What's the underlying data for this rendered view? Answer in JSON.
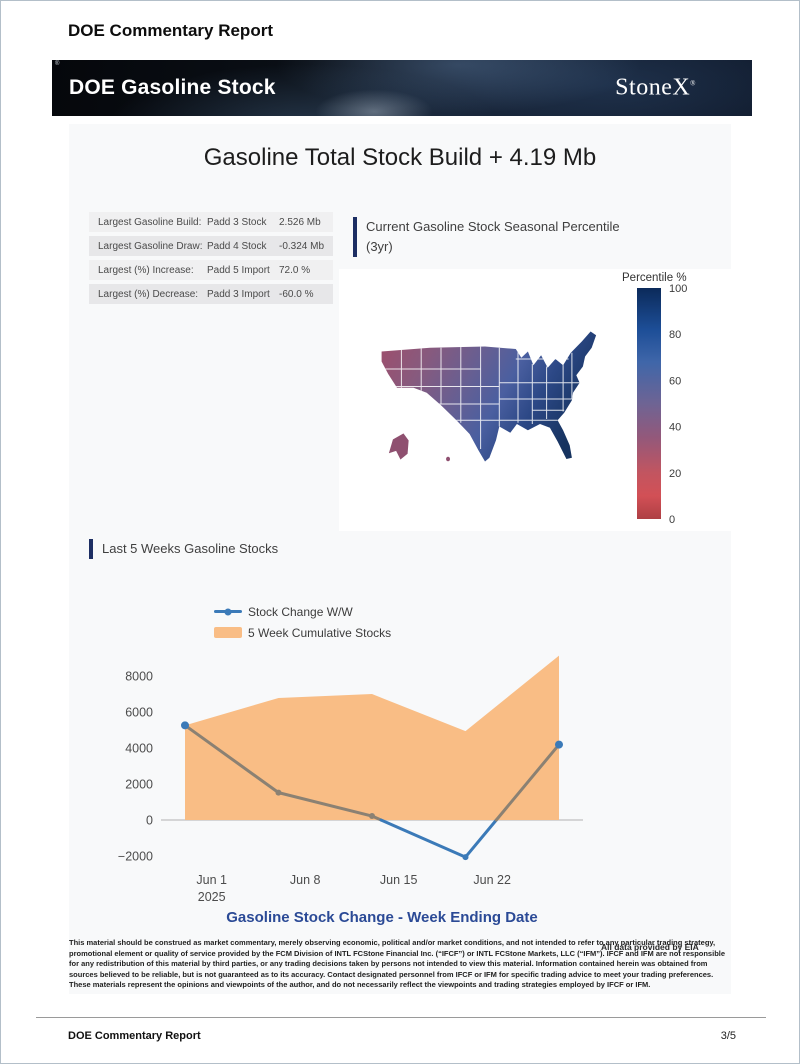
{
  "page": {
    "header_title": "DOE Commentary Report",
    "footer": {
      "left": "DOE Commentary Report",
      "right": "3/5"
    }
  },
  "banner": {
    "title": "DOE Gasoline Stock",
    "brand": "StoneX",
    "brand_reg": "®",
    "corner_mark": "®"
  },
  "report": {
    "title": "Gasoline Total Stock Build + 4.19 Mb"
  },
  "stats_table": {
    "rows": [
      {
        "label": "Largest Gasoline Build:",
        "series": "Padd 3 Stock",
        "value": "2.526 Mb"
      },
      {
        "label": "Largest Gasoline Draw:",
        "series": "Padd 4 Stock",
        "value": "-0.324 Mb"
      },
      {
        "label": "Largest (%) Increase:",
        "series": "Padd 5 Import",
        "value": "72.0 %"
      },
      {
        "label": "Largest (%) Decrease:",
        "series": "Padd 3 Import",
        "value": "-60.0 %"
      }
    ]
  },
  "map_section": {
    "heading_line1": "Current Gasoline Stock Seasonal Percentile",
    "heading_line2": "(3yr)",
    "colorbar": {
      "title": "Percentile %",
      "ticks": [
        100,
        80,
        60,
        40,
        20,
        0
      ],
      "gradient": [
        {
          "at": "0%",
          "color": "#0b2a5a"
        },
        {
          "at": "18%",
          "color": "#1d4e97"
        },
        {
          "at": "32%",
          "color": "#3f66a9"
        },
        {
          "at": "50%",
          "color": "#6e6494"
        },
        {
          "at": "65%",
          "color": "#94587a"
        },
        {
          "at": "80%",
          "color": "#c25560"
        },
        {
          "at": "90%",
          "color": "#d25056"
        },
        {
          "at": "100%",
          "color": "#ae3f44"
        }
      ]
    },
    "map_gradient": [
      {
        "at": "0%",
        "color": "#9d4f6d"
      },
      {
        "at": "22%",
        "color": "#875a7e"
      },
      {
        "at": "45%",
        "color": "#655f93"
      },
      {
        "at": "62%",
        "color": "#4a5fa0"
      },
      {
        "at": "78%",
        "color": "#2c4886"
      },
      {
        "at": "100%",
        "color": "#16335f"
      }
    ],
    "alaska_color": "#8f5070"
  },
  "chart_section": {
    "heading": "Last 5 Weeks Gasoline Stocks",
    "legend": [
      {
        "label": "Stock Change W/W",
        "color": "#3b7ab8",
        "type": "line"
      },
      {
        "label": "5 Week Cumulative Stocks",
        "color": "#f9bd85",
        "type": "area"
      }
    ],
    "xaxis_title": "Gasoline Stock Change - Week Ending Date"
  },
  "chart_data": {
    "type": "line+area",
    "title": "Last 5 Weeks Gasoline Stocks",
    "xlabel": "Gasoline Stock Change - Week Ending Date",
    "ylabel": "",
    "x_tick_labels": [
      [
        "Jun 1",
        "2025"
      ],
      [
        "Jun 8"
      ],
      [
        "Jun 15"
      ],
      [
        "Jun 22"
      ]
    ],
    "y_ticks": [
      8000,
      6000,
      4000,
      2000,
      0,
      -2000
    ],
    "ylim": [
      -2900,
      9650
    ],
    "grid": false,
    "legend_position": "top-center",
    "series": [
      {
        "name": "Stock Change W/W",
        "type": "line",
        "color": "#3b7ab8",
        "muted_overlap_color": "#8b8173",
        "values": [
          5260,
          1520,
          220,
          -2060,
          4190
        ]
      },
      {
        "name": "5 Week Cumulative Stocks",
        "type": "area",
        "color": "#f9bd85",
        "values": [
          5260,
          6780,
          7000,
          4940,
          9130
        ]
      }
    ]
  },
  "data_note": "All data provided by EIA",
  "disclaimer": "This material should be construed as market commentary, merely observing economic, political and/or market conditions, and not intended to refer to any particular trading strategy, promotional element or quality of service provided by the FCM Division of INTL FCStone Financial Inc. (“IFCF”) or INTL FCStone Markets, LLC (“IFM”). IFCF and IFM are not responsible for any redistribution of this material by third parties, or any trading decisions taken by persons not intended to view this material. Information contained herein was obtained from sources believed to be reliable, but is not guaranteed as to its accuracy. Contact designated personnel from IFCF or IFM for specific trading advice to meet your trading preferences. These materials represent the opinions and viewpoints of the author, and do not necessarily reflect the viewpoints and trading strategies employed by IFCF or IFM."
}
